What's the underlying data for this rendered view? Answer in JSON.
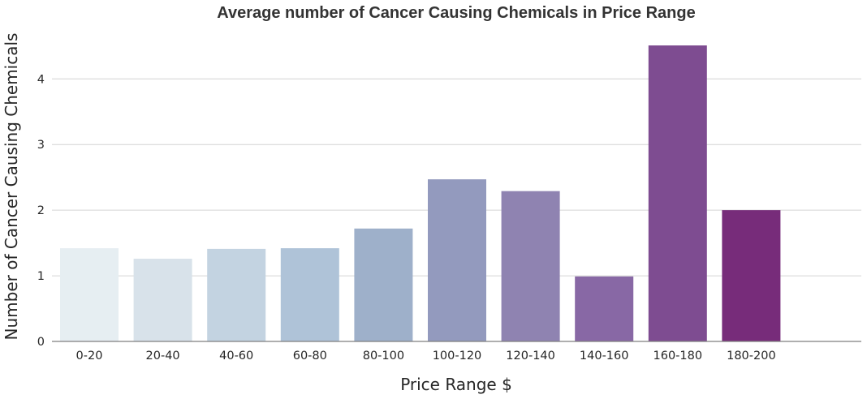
{
  "chart_data": {
    "type": "bar",
    "title": "Average number of Cancer Causing Chemicals in Price Range",
    "xlabel": "Price Range $",
    "ylabel": "Number of Cancer Causing Chemicals",
    "categories": [
      "0-20",
      "20-40",
      "40-60",
      "60-80",
      "80-100",
      "100-120",
      "120-140",
      "140-160",
      "160-180",
      "180-200"
    ],
    "values": [
      1.42,
      1.26,
      1.41,
      1.42,
      1.72,
      2.47,
      2.29,
      0.99,
      4.51,
      2.0
    ],
    "yticks": [
      0,
      1,
      2,
      3,
      4
    ],
    "ylim": [
      0,
      4.51
    ],
    "grid": "horizontal",
    "legend": "none",
    "colors": [
      "#e6eef2",
      "#d8e2ea",
      "#c3d3e1",
      "#afc3d8",
      "#9eb0ca",
      "#939abe",
      "#8f83b1",
      "#8868a5",
      "#7e4c91",
      "#772c7a"
    ]
  }
}
